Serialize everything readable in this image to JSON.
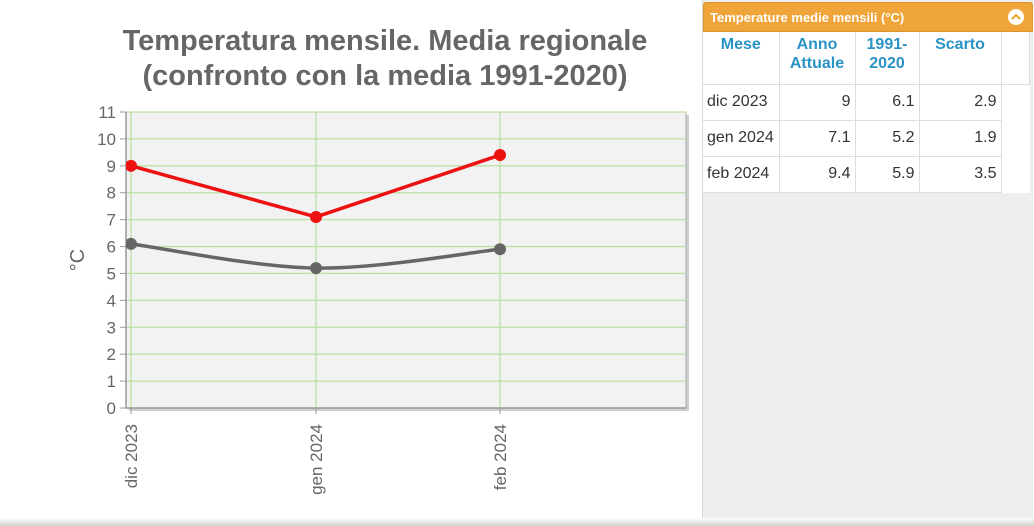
{
  "chart_data": {
    "type": "line",
    "title": [
      "Temperatura mensile. Media regionale",
      "(confronto con la media 1991-2020)"
    ],
    "xlabel": "",
    "ylabel": "°C",
    "categories": [
      "dic 2023",
      "gen 2024",
      "feb 2024"
    ],
    "ylim": [
      0,
      11
    ],
    "yticks": [
      0,
      1,
      2,
      3,
      4,
      5,
      6,
      7,
      8,
      9,
      10,
      11
    ],
    "grid": true,
    "series": [
      {
        "values": [
          9,
          7.1,
          9.4
        ],
        "color": "#ee1111"
      },
      {
        "values": [
          6.1,
          5.2,
          5.9
        ],
        "color": "#666666",
        "smooth": true
      }
    ]
  },
  "panel": {
    "title": "Temperature medie mensili (°C)",
    "collapse_icon": "chevron-up-icon",
    "accent": "#f0a53a",
    "header_text_color": "#2a93c5",
    "columns": [
      {
        "lines": [
          "Mese"
        ]
      },
      {
        "lines": [
          "Anno",
          "Attuale"
        ]
      },
      {
        "lines": [
          "1991-",
          "2020"
        ]
      },
      {
        "lines": [
          "Scarto"
        ]
      }
    ],
    "rows": [
      {
        "mese": "dic 2023",
        "attuale": "9",
        "media": "6.1",
        "scarto": "2.9"
      },
      {
        "mese": "gen 2024",
        "attuale": "7.1",
        "media": "5.2",
        "scarto": "1.9"
      },
      {
        "mese": "feb 2024",
        "attuale": "9.4",
        "media": "5.9",
        "scarto": "3.5"
      }
    ]
  }
}
